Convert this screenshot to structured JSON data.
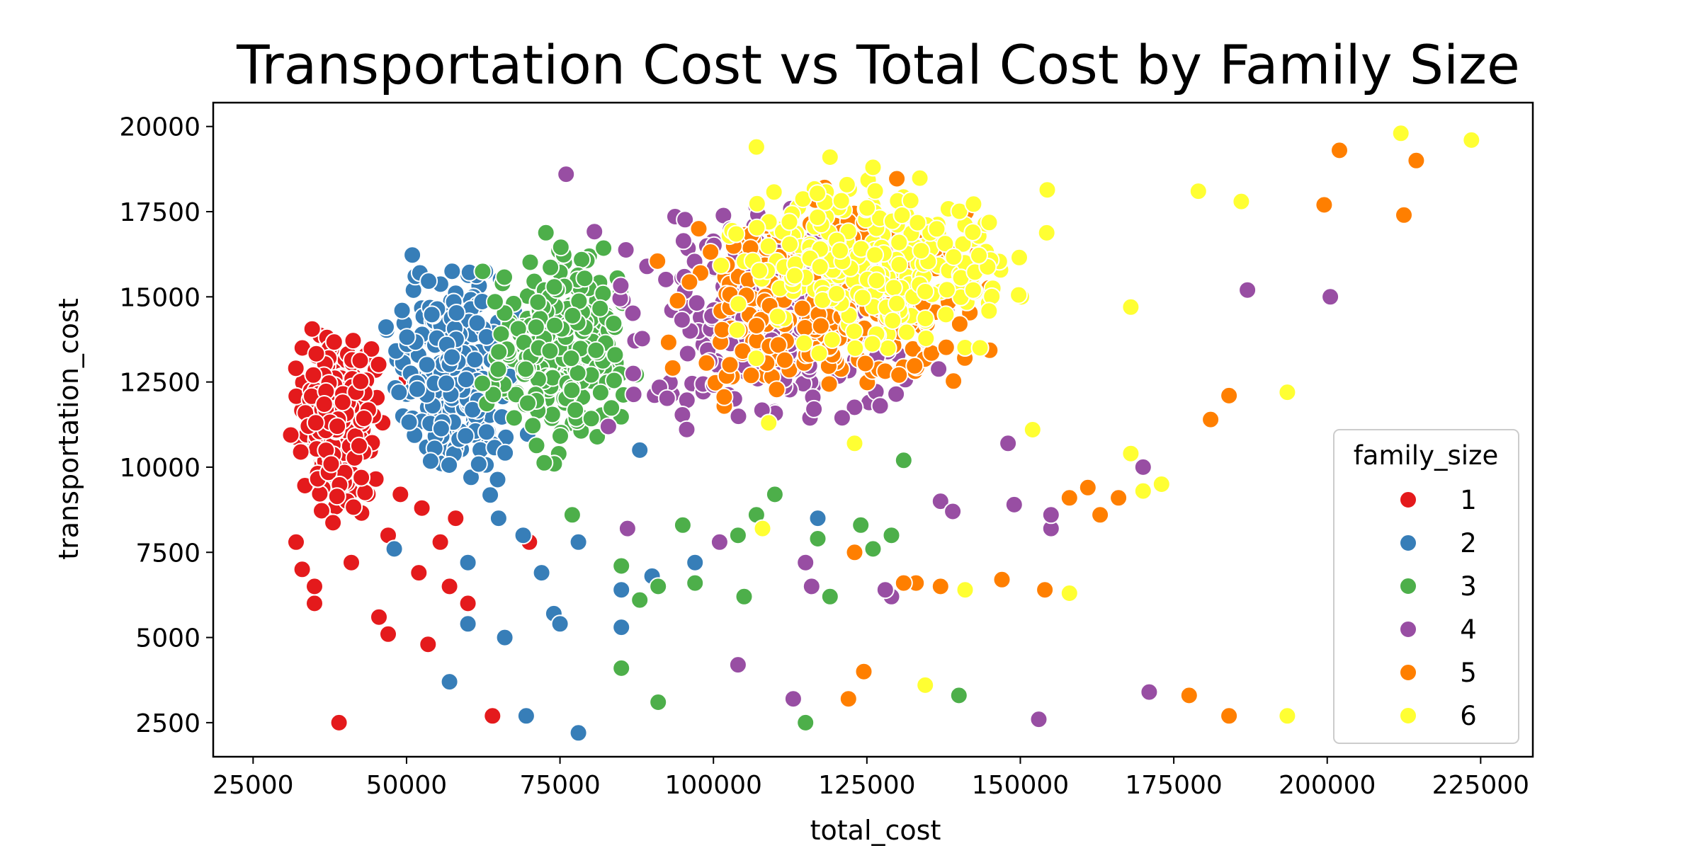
{
  "chart_data": {
    "type": "scatter",
    "title": "Transportation Cost vs Total Cost by Family Size",
    "xlabel": "total_cost",
    "ylabel": "transportation_cost",
    "xlim": [
      18500,
      233500
    ],
    "ylim": [
      1500,
      20700
    ],
    "xticks": [
      25000,
      50000,
      75000,
      100000,
      125000,
      150000,
      175000,
      200000,
      225000
    ],
    "yticks": [
      2500,
      5000,
      7500,
      10000,
      12500,
      15000,
      17500,
      20000
    ],
    "grid": false,
    "legend": {
      "title": "family_size",
      "position": "lower-right"
    },
    "series": [
      {
        "name": "1",
        "color": "#e41a1c",
        "cluster": {
          "x_min": 30000,
          "x_max": 47000,
          "y_min": 8200,
          "y_max": 14700
        },
        "points": [
          [
            39000,
            2500
          ],
          [
            64000,
            2700
          ],
          [
            45500,
            5600
          ],
          [
            47000,
            5100
          ],
          [
            53500,
            4800
          ],
          [
            35000,
            6000
          ],
          [
            35000,
            6500
          ],
          [
            33000,
            7000
          ],
          [
            32000,
            7800
          ],
          [
            41000,
            7200
          ],
          [
            52000,
            6900
          ],
          [
            57000,
            6500
          ],
          [
            60000,
            6000
          ],
          [
            55500,
            7800
          ],
          [
            58000,
            8500
          ],
          [
            50000,
            12600
          ],
          [
            70000,
            7800
          ],
          [
            49000,
            9200
          ],
          [
            47000,
            8000
          ],
          [
            52500,
            8800
          ]
        ]
      },
      {
        "name": "2",
        "color": "#377eb8",
        "cluster": {
          "x_min": 44000,
          "x_max": 72000,
          "y_min": 8500,
          "y_max": 16800
        },
        "points": [
          [
            69500,
            2700
          ],
          [
            78000,
            2200
          ],
          [
            57000,
            3700
          ],
          [
            66000,
            5000
          ],
          [
            60000,
            5400
          ],
          [
            74000,
            5700
          ],
          [
            75000,
            5400
          ],
          [
            85000,
            5300
          ],
          [
            85000,
            6400
          ],
          [
            90000,
            6800
          ],
          [
            97000,
            7200
          ],
          [
            72000,
            6900
          ],
          [
            78000,
            7800
          ],
          [
            69000,
            8000
          ],
          [
            65000,
            8500
          ],
          [
            48000,
            7600
          ],
          [
            60000,
            7200
          ],
          [
            117000,
            8500
          ],
          [
            139000,
            12500
          ],
          [
            88000,
            10500
          ]
        ]
      },
      {
        "name": "3",
        "color": "#4daf4a",
        "cluster": {
          "x_min": 60000,
          "x_max": 90000,
          "y_min": 9500,
          "y_max": 17500
        },
        "points": [
          [
            115000,
            2500
          ],
          [
            91000,
            3100
          ],
          [
            140000,
            3300
          ],
          [
            85000,
            4100
          ],
          [
            88000,
            6100
          ],
          [
            91000,
            6500
          ],
          [
            97000,
            6600
          ],
          [
            105000,
            6200
          ],
          [
            119000,
            6200
          ],
          [
            85000,
            7100
          ],
          [
            95000,
            8300
          ],
          [
            104000,
            8000
          ],
          [
            107000,
            8600
          ],
          [
            110000,
            9200
          ],
          [
            117000,
            7900
          ],
          [
            126000,
            7600
          ],
          [
            129000,
            8000
          ],
          [
            124000,
            8300
          ],
          [
            77000,
            8600
          ],
          [
            131000,
            10200
          ]
        ]
      },
      {
        "name": "4",
        "color": "#984ea3",
        "cluster": {
          "x_min": 75000,
          "x_max": 145000,
          "y_min": 10000,
          "y_max": 18500
        },
        "points": [
          [
            104000,
            4200
          ],
          [
            113000,
            3200
          ],
          [
            153000,
            2600
          ],
          [
            171000,
            3400
          ],
          [
            101000,
            7800
          ],
          [
            115000,
            7200
          ],
          [
            116000,
            6500
          ],
          [
            129000,
            6200
          ],
          [
            128000,
            6400
          ],
          [
            137000,
            9000
          ],
          [
            139000,
            8700
          ],
          [
            149000,
            8900
          ],
          [
            155000,
            8200
          ],
          [
            155000,
            8600
          ],
          [
            148000,
            10700
          ],
          [
            170000,
            10000
          ],
          [
            187000,
            15200
          ],
          [
            200500,
            15000
          ],
          [
            76000,
            18600
          ],
          [
            86000,
            8200
          ]
        ]
      },
      {
        "name": "5",
        "color": "#ff7f00",
        "cluster": {
          "x_min": 85000,
          "x_max": 150000,
          "y_min": 11000,
          "y_max": 19000
        },
        "points": [
          [
            124500,
            4000
          ],
          [
            122000,
            3200
          ],
          [
            177500,
            3300
          ],
          [
            184000,
            2700
          ],
          [
            133000,
            6600
          ],
          [
            137000,
            6500
          ],
          [
            147000,
            6700
          ],
          [
            154000,
            6400
          ],
          [
            158000,
            9100
          ],
          [
            163000,
            8600
          ],
          [
            166000,
            9100
          ],
          [
            161000,
            9400
          ],
          [
            181000,
            11400
          ],
          [
            184000,
            12100
          ],
          [
            123000,
            7500
          ],
          [
            131000,
            6600
          ],
          [
            199500,
            17700
          ],
          [
            202000,
            19300
          ],
          [
            212500,
            17400
          ],
          [
            214500,
            19000
          ]
        ]
      },
      {
        "name": "6",
        "color": "#ffff33",
        "cluster": {
          "x_min": 95000,
          "x_max": 160000,
          "y_min": 12500,
          "y_max": 19300
        },
        "points": [
          [
            134500,
            3600
          ],
          [
            193500,
            2700
          ],
          [
            141000,
            6400
          ],
          [
            158000,
            6300
          ],
          [
            108000,
            8200
          ],
          [
            123000,
            10700
          ],
          [
            152000,
            11100
          ],
          [
            168000,
            10400
          ],
          [
            170000,
            9300
          ],
          [
            173000,
            9500
          ],
          [
            193500,
            12200
          ],
          [
            186000,
            17800
          ],
          [
            179000,
            18100
          ],
          [
            168000,
            14700
          ],
          [
            212000,
            19800
          ],
          [
            223500,
            19600
          ],
          [
            107000,
            19400
          ],
          [
            119000,
            19100
          ],
          [
            126000,
            18800
          ],
          [
            109000,
            11300
          ]
        ]
      }
    ]
  }
}
